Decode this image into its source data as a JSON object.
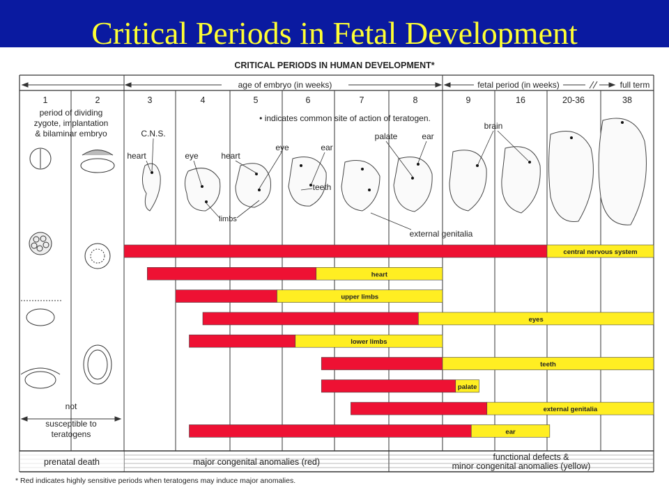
{
  "slide_title": "Critical Periods in Fetal Development",
  "figure": {
    "title": "CRITICAL PERIODS IN HUMAN DEVELOPMENT*",
    "embryo_period_label": "age of embryo (in weeks)",
    "fetal_period_label": "fetal period (in weeks)",
    "full_term_label": "full term",
    "week_headers": [
      "1",
      "2",
      "3",
      "4",
      "5",
      "6",
      "7",
      "8",
      "9",
      "16",
      "20-36",
      "38"
    ],
    "early_label_lines": [
      "period of dividing",
      "zygote, implantation",
      "& bilaminar embryo"
    ],
    "teratogen_note": "• indicates common site of action of teratogen.",
    "not_susceptible_lines": [
      "not",
      "susceptible to",
      "teratogens"
    ],
    "structure_labels": {
      "cns": "C.N.S.",
      "heart_1": "heart",
      "eye_1": "eye",
      "heart_2": "heart",
      "eye_2": "eye",
      "ear_1": "ear",
      "limbs": "limbs",
      "teeth": "teeth",
      "palate": "palate",
      "ear_2": "ear",
      "brain": "brain",
      "external_genitalia": "external genitalia"
    },
    "footer_labels": {
      "prenatal_death": "prenatal death",
      "major_anomalies": "major congenital anomalies (red)",
      "minor_line1": "functional defects &",
      "minor_line2": "minor congenital anomalies (yellow)"
    },
    "footnote": "* Red indicates highly sensitive periods when teratogens may induce major anomalies.",
    "colors": {
      "red": "#ee1133",
      "yellow": "#ffee22",
      "title_yellow": "#ffff33",
      "slide_blue": "#0a1aa0"
    }
  },
  "chart_data": {
    "type": "gantt",
    "x_axis_columns": [
      "3",
      "4",
      "5",
      "6",
      "7",
      "8",
      "9",
      "16",
      "20-36",
      "38"
    ],
    "note": "Bar extents are given in column units: 0 = start of week-3 column, each integer = one column boundary (3,4,5,6,7,8,9,16,20-36,38).",
    "bars": [
      {
        "name": "central nervous system",
        "red": [
          0.0,
          8.0
        ],
        "yellow": [
          8.0,
          10.0
        ]
      },
      {
        "name": "heart",
        "red": [
          0.45,
          3.65
        ],
        "yellow": [
          3.65,
          6.0
        ]
      },
      {
        "name": "upper limbs",
        "red": [
          1.0,
          2.9
        ],
        "yellow": [
          2.9,
          6.0
        ]
      },
      {
        "name": "eyes",
        "red": [
          1.5,
          5.55
        ],
        "yellow": [
          5.55,
          10.0
        ]
      },
      {
        "name": "lower limbs",
        "red": [
          1.25,
          3.25
        ],
        "yellow": [
          3.25,
          6.0
        ]
      },
      {
        "name": "teeth",
        "red": [
          3.75,
          6.0
        ],
        "yellow": [
          6.0,
          10.0
        ]
      },
      {
        "name": "palate",
        "red": [
          3.75,
          6.25
        ],
        "yellow": [
          6.25,
          6.7
        ]
      },
      {
        "name": "external genitalia",
        "red": [
          4.3,
          6.85
        ],
        "yellow": [
          6.85,
          10.0
        ]
      },
      {
        "name": "ear",
        "red": [
          1.25,
          6.55
        ],
        "yellow": [
          6.55,
          8.05
        ]
      }
    ]
  }
}
